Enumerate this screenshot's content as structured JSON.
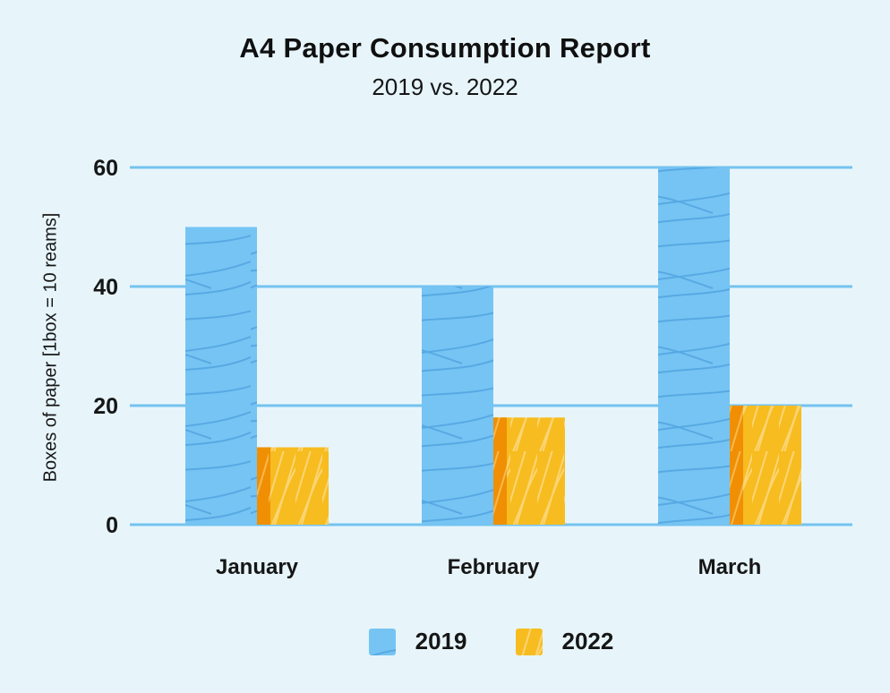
{
  "header": {
    "title": "A4 Paper Consumption Report",
    "subtitle": "2019 vs. 2022"
  },
  "chart_data": {
    "type": "bar",
    "title": "A4 Paper Consumption Report",
    "subtitle": "2019 vs. 2022",
    "categories": [
      "January",
      "February",
      "March"
    ],
    "series": [
      {
        "name": "2019",
        "values": [
          50,
          40,
          60
        ],
        "color": "#76C4F3",
        "texture": "wavy-lines",
        "texture_color": "#3E94D6"
      },
      {
        "name": "2022",
        "values": [
          13,
          18,
          20
        ],
        "color": "#F7BC20",
        "texture": "diagonal-hatch",
        "texture_color": "#FCD87E",
        "accent_color": "#F08F04",
        "accent_texture_color": "#F8BE55"
      }
    ],
    "xlabel": "",
    "ylabel": "Boxes of paper [1box = 10 reams]",
    "yticks": [
      0,
      20,
      40,
      60
    ],
    "ylim": [
      0,
      60
    ],
    "grid": true,
    "gridline_color": "#74C3EF",
    "background_color": "#E7F5FB",
    "text_color": "#161616",
    "legend_position": "bottom",
    "legend_labels": [
      "2019",
      "2022"
    ]
  }
}
